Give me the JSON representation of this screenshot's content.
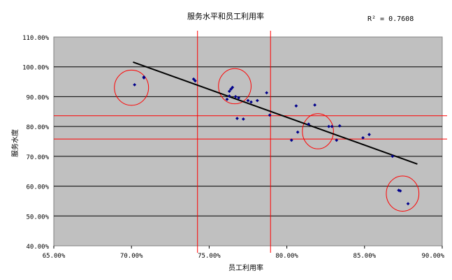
{
  "chart_data": {
    "type": "scatter",
    "title": "服务水平和员工利用率",
    "xlabel": "员工利用率",
    "ylabel": "服务水度",
    "annotation": "R² = 0.7608",
    "xlim": [
      0.65,
      0.9
    ],
    "ylim": [
      0.4,
      1.1
    ],
    "x_ticks": [
      0.65,
      0.7,
      0.75,
      0.8,
      0.85,
      0.9
    ],
    "y_ticks": [
      0.4,
      0.5,
      0.6,
      0.7,
      0.8,
      0.9,
      1.0,
      1.1
    ],
    "x_tick_labels": [
      "65.00%",
      "70.00%",
      "75.00%",
      "80.00%",
      "85.00%",
      "90.00%"
    ],
    "y_tick_labels": [
      "40.00%",
      "50.00%",
      "60.00%",
      "70.00%",
      "80.00%",
      "90.00%",
      "100.00%",
      "110.00%"
    ],
    "grid": "horizontal",
    "plot_background": "#c0c0c0",
    "point_color": "#00008b",
    "trendline": {
      "type": "linear",
      "x": [
        0.701,
        0.884
      ],
      "y": [
        1.016,
        0.674
      ],
      "color": "#000000"
    },
    "reference_lines": {
      "color": "#ff0000",
      "vertical_x": [
        0.7425,
        0.7895
      ],
      "horizontal_y": [
        0.836,
        0.758
      ]
    },
    "circles": [
      {
        "cx": 0.7,
        "cy": 0.93,
        "rx": 0.011,
        "ry": 0.059
      },
      {
        "cx": 0.7665,
        "cy": 0.935,
        "rx": 0.0105,
        "ry": 0.059
      },
      {
        "cx": 0.82,
        "cy": 0.784,
        "rx": 0.01,
        "ry": 0.059
      },
      {
        "cx": 0.8745,
        "cy": 0.575,
        "rx": 0.0105,
        "ry": 0.059
      }
    ],
    "points": [
      {
        "x": 0.702,
        "y": 0.94
      },
      {
        "x": 0.708,
        "y": 0.966
      },
      {
        "x": 0.708,
        "y": 0.963
      },
      {
        "x": 0.74,
        "y": 0.959
      },
      {
        "x": 0.741,
        "y": 0.953
      },
      {
        "x": 0.7615,
        "y": 0.891
      },
      {
        "x": 0.763,
        "y": 0.902
      },
      {
        "x": 0.763,
        "y": 0.918
      },
      {
        "x": 0.764,
        "y": 0.925
      },
      {
        "x": 0.765,
        "y": 0.931
      },
      {
        "x": 0.767,
        "y": 0.9
      },
      {
        "x": 0.768,
        "y": 0.827
      },
      {
        "x": 0.769,
        "y": 0.896
      },
      {
        "x": 0.772,
        "y": 0.825
      },
      {
        "x": 0.775,
        "y": 0.887
      },
      {
        "x": 0.777,
        "y": 0.882
      },
      {
        "x": 0.781,
        "y": 0.887
      },
      {
        "x": 0.787,
        "y": 0.913
      },
      {
        "x": 0.789,
        "y": 0.838
      },
      {
        "x": 0.803,
        "y": 0.754
      },
      {
        "x": 0.806,
        "y": 0.869
      },
      {
        "x": 0.807,
        "y": 0.781
      },
      {
        "x": 0.814,
        "y": 0.808
      },
      {
        "x": 0.818,
        "y": 0.872
      },
      {
        "x": 0.827,
        "y": 0.8
      },
      {
        "x": 0.829,
        "y": 0.8
      },
      {
        "x": 0.832,
        "y": 0.754
      },
      {
        "x": 0.834,
        "y": 0.802
      },
      {
        "x": 0.849,
        "y": 0.762
      },
      {
        "x": 0.853,
        "y": 0.773
      },
      {
        "x": 0.868,
        "y": 0.7
      },
      {
        "x": 0.872,
        "y": 0.586
      },
      {
        "x": 0.873,
        "y": 0.584
      },
      {
        "x": 0.878,
        "y": 0.541
      }
    ]
  }
}
